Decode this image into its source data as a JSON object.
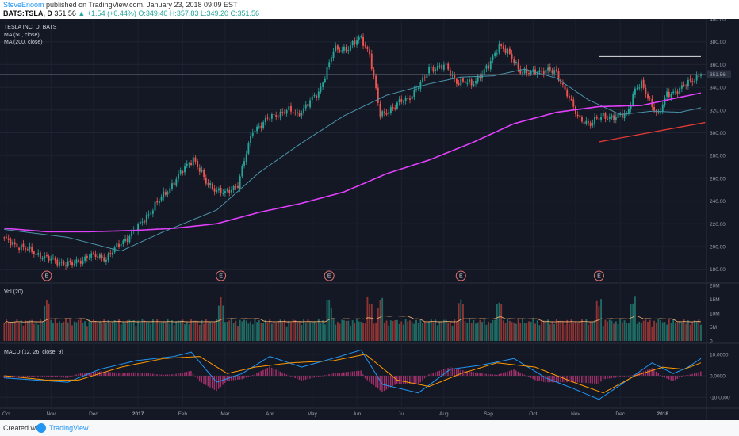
{
  "header": {
    "author": "SteveEnoom",
    "published_text": "published on TradingView.com, January 23, 2018 09:09 EST",
    "symbol": "BATS:TSLA, D",
    "last": "351.56",
    "change": "▲ +1.54 (+0.44%)",
    "o": "O:349.40",
    "h": "H:357.83",
    "l": "L:349.20",
    "c": "C:351.56"
  },
  "footer": {
    "created_with": "Created with",
    "brand": "TradingView"
  },
  "colors": {
    "background": "#141824",
    "up": "#26a69a",
    "down": "#ef5350",
    "ma50": "#4a93a8",
    "ma200": "#e040fb",
    "trendline_support": "#e53935",
    "resistance_line": "#e0e0e0",
    "macd": "#2196f3",
    "signal": "#ff9800",
    "earnings": "#e57373"
  },
  "chart_data": {
    "type": "candlestick",
    "instrument": "TESLA INC, D, BATS",
    "indicators": [
      "MA (50, close)",
      "MA (200, close)"
    ],
    "price_axis": {
      "ylim": [
        170,
        400
      ],
      "ticks": [
        "400.00",
        "380.00",
        "360.00",
        "340.00",
        "320.00",
        "300.00",
        "280.00",
        "260.00",
        "240.00",
        "220.00",
        "200.00",
        "180.00"
      ]
    },
    "last_price_label": "351.56",
    "x_axis_labels": [
      "Oct",
      "Nov",
      "Dec",
      "2017",
      "Feb",
      "Mar",
      "Apr",
      "May",
      "Jun",
      "Jul",
      "Aug",
      "Sep",
      "Oct",
      "Nov",
      "Dec",
      "2018"
    ],
    "close_anchors": [
      {
        "d": 0,
        "v": 206
      },
      {
        "d": 10,
        "v": 198
      },
      {
        "d": 22,
        "v": 188
      },
      {
        "d": 32,
        "v": 184
      },
      {
        "d": 40,
        "v": 192
      },
      {
        "d": 48,
        "v": 190
      },
      {
        "d": 55,
        "v": 203
      },
      {
        "d": 62,
        "v": 215
      },
      {
        "d": 68,
        "v": 229
      },
      {
        "d": 78,
        "v": 252
      },
      {
        "d": 85,
        "v": 269
      },
      {
        "d": 89,
        "v": 278
      },
      {
        "d": 95,
        "v": 256
      },
      {
        "d": 100,
        "v": 250
      },
      {
        "d": 104,
        "v": 246
      },
      {
        "d": 110,
        "v": 255
      },
      {
        "d": 117,
        "v": 302
      },
      {
        "d": 125,
        "v": 313
      },
      {
        "d": 133,
        "v": 320
      },
      {
        "d": 138,
        "v": 316
      },
      {
        "d": 148,
        "v": 335
      },
      {
        "d": 155,
        "v": 372
      },
      {
        "d": 162,
        "v": 375
      },
      {
        "d": 168,
        "v": 383
      },
      {
        "d": 172,
        "v": 370
      },
      {
        "d": 177,
        "v": 315
      },
      {
        "d": 185,
        "v": 325
      },
      {
        "d": 190,
        "v": 330
      },
      {
        "d": 197,
        "v": 345
      },
      {
        "d": 200,
        "v": 357
      },
      {
        "d": 208,
        "v": 358
      },
      {
        "d": 213,
        "v": 345
      },
      {
        "d": 220,
        "v": 343
      },
      {
        "d": 228,
        "v": 358
      },
      {
        "d": 233,
        "v": 378
      },
      {
        "d": 237,
        "v": 370
      },
      {
        "d": 243,
        "v": 355
      },
      {
        "d": 248,
        "v": 352
      },
      {
        "d": 255,
        "v": 356
      },
      {
        "d": 260,
        "v": 352
      },
      {
        "d": 265,
        "v": 335
      },
      {
        "d": 270,
        "v": 313
      },
      {
        "d": 276,
        "v": 308
      },
      {
        "d": 282,
        "v": 315
      },
      {
        "d": 288,
        "v": 313
      },
      {
        "d": 293,
        "v": 317
      },
      {
        "d": 297,
        "v": 338
      },
      {
        "d": 300,
        "v": 342
      },
      {
        "d": 305,
        "v": 325
      },
      {
        "d": 308,
        "v": 315
      },
      {
        "d": 312,
        "v": 334
      },
      {
        "d": 318,
        "v": 338
      },
      {
        "d": 325,
        "v": 348
      },
      {
        "d": 328,
        "v": 351.56
      }
    ],
    "ma50_anchors": [
      {
        "d": 0,
        "v": 215
      },
      {
        "d": 30,
        "v": 208
      },
      {
        "d": 55,
        "v": 196
      },
      {
        "d": 75,
        "v": 213
      },
      {
        "d": 100,
        "v": 232
      },
      {
        "d": 120,
        "v": 265
      },
      {
        "d": 140,
        "v": 291
      },
      {
        "d": 160,
        "v": 315
      },
      {
        "d": 180,
        "v": 333
      },
      {
        "d": 200,
        "v": 343
      },
      {
        "d": 215,
        "v": 349
      },
      {
        "d": 230,
        "v": 350
      },
      {
        "d": 245,
        "v": 356
      },
      {
        "d": 260,
        "v": 348
      },
      {
        "d": 275,
        "v": 329
      },
      {
        "d": 290,
        "v": 316
      },
      {
        "d": 305,
        "v": 319
      },
      {
        "d": 318,
        "v": 318
      },
      {
        "d": 328,
        "v": 322
      }
    ],
    "ma200_anchors": [
      {
        "d": 0,
        "v": 216
      },
      {
        "d": 20,
        "v": 213
      },
      {
        "d": 40,
        "v": 213
      },
      {
        "d": 60,
        "v": 214
      },
      {
        "d": 80,
        "v": 216
      },
      {
        "d": 100,
        "v": 220
      },
      {
        "d": 120,
        "v": 230
      },
      {
        "d": 140,
        "v": 238
      },
      {
        "d": 160,
        "v": 248
      },
      {
        "d": 180,
        "v": 264
      },
      {
        "d": 200,
        "v": 276
      },
      {
        "d": 220,
        "v": 291
      },
      {
        "d": 240,
        "v": 308
      },
      {
        "d": 260,
        "v": 318
      },
      {
        "d": 280,
        "v": 323
      },
      {
        "d": 300,
        "v": 324
      },
      {
        "d": 315,
        "v": 330
      },
      {
        "d": 328,
        "v": 335
      }
    ],
    "resistance_line": {
      "d_start": 280,
      "d_end": 328,
      "v": 367
    },
    "support_line": {
      "d_start": 280,
      "v_start": 292,
      "d_end": 330,
      "v_end": 309
    },
    "earnings_markers": [
      {
        "d": 20,
        "label": "E"
      },
      {
        "d": 102,
        "label": "E"
      },
      {
        "d": 153,
        "label": "E"
      },
      {
        "d": 215,
        "label": "E"
      },
      {
        "d": 280,
        "label": "E"
      }
    ],
    "volume": {
      "title": "Vol (20)",
      "ticks": [
        "20M",
        "15M",
        "10M",
        "5M",
        "0"
      ],
      "ylim": [
        0,
        20
      ]
    },
    "macd": {
      "title": "MACD (12, 26, close, 9)",
      "ticks": [
        "10.0000",
        "0.0000",
        "-10.0000"
      ],
      "ylim": [
        -14,
        14
      ],
      "macd_anchors": [
        {
          "d": 0,
          "v": -1
        },
        {
          "d": 15,
          "v": -2
        },
        {
          "d": 30,
          "v": -3
        },
        {
          "d": 45,
          "v": 3
        },
        {
          "d": 62,
          "v": 7
        },
        {
          "d": 80,
          "v": 9
        },
        {
          "d": 88,
          "v": 11
        },
        {
          "d": 100,
          "v": -3
        },
        {
          "d": 112,
          "v": 1
        },
        {
          "d": 125,
          "v": 9
        },
        {
          "d": 140,
          "v": 4
        },
        {
          "d": 158,
          "v": 9
        },
        {
          "d": 168,
          "v": 12
        },
        {
          "d": 178,
          "v": -4
        },
        {
          "d": 195,
          "v": -8
        },
        {
          "d": 210,
          "v": 3
        },
        {
          "d": 225,
          "v": 5
        },
        {
          "d": 240,
          "v": 8
        },
        {
          "d": 255,
          "v": -1
        },
        {
          "d": 268,
          "v": -6
        },
        {
          "d": 280,
          "v": -11
        },
        {
          "d": 292,
          "v": -3
        },
        {
          "d": 305,
          "v": 6
        },
        {
          "d": 315,
          "v": 1
        },
        {
          "d": 322,
          "v": 4
        },
        {
          "d": 328,
          "v": 8
        }
      ],
      "signal_anchors": [
        {
          "d": 0,
          "v": 0
        },
        {
          "d": 20,
          "v": -2
        },
        {
          "d": 35,
          "v": -2
        },
        {
          "d": 55,
          "v": 4
        },
        {
          "d": 75,
          "v": 8
        },
        {
          "d": 92,
          "v": 9
        },
        {
          "d": 105,
          "v": 1
        },
        {
          "d": 118,
          "v": 4
        },
        {
          "d": 135,
          "v": 6
        },
        {
          "d": 155,
          "v": 7
        },
        {
          "d": 170,
          "v": 10
        },
        {
          "d": 185,
          "v": -2
        },
        {
          "d": 200,
          "v": -5
        },
        {
          "d": 215,
          "v": 1
        },
        {
          "d": 232,
          "v": 6
        },
        {
          "d": 250,
          "v": 4
        },
        {
          "d": 268,
          "v": -3
        },
        {
          "d": 282,
          "v": -8
        },
        {
          "d": 297,
          "v": 0
        },
        {
          "d": 310,
          "v": 4
        },
        {
          "d": 320,
          "v": 3
        },
        {
          "d": 328,
          "v": 6
        }
      ]
    }
  }
}
